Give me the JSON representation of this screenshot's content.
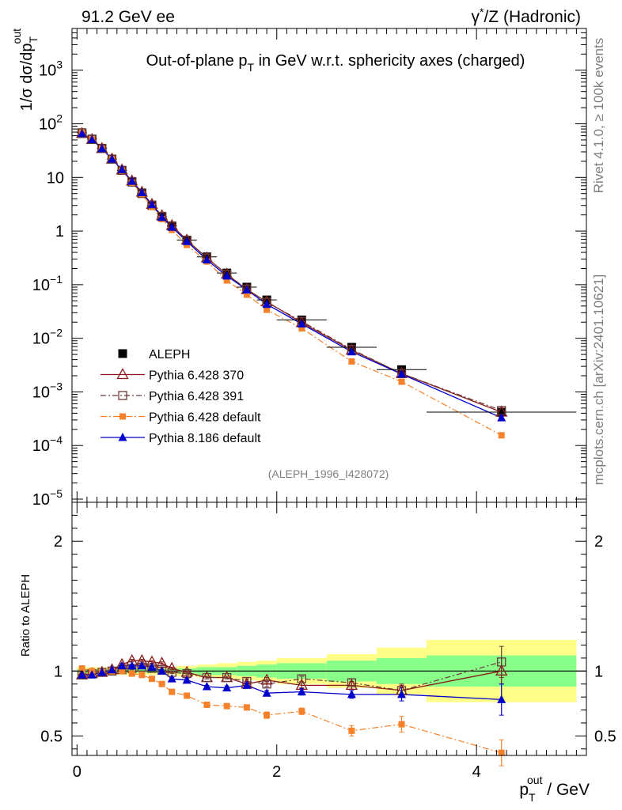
{
  "header": {
    "left": "91.2 GeV ee",
    "right_prefix": "γ",
    "right_sup": "*",
    "right_suffix": "/Z (Hadronic)"
  },
  "side": {
    "rivet": "Rivet 4.1.0, ≥ 100k events",
    "mcplots": "mcplots.cern.ch [arXiv:2401.10621]"
  },
  "colors": {
    "aleph": "#000000",
    "p370": "#8b1a1a",
    "p391": "#6b3a3a",
    "p6def": "#f5822a",
    "p8": "#0000cc",
    "band_outer": "#ffff88",
    "band_inner": "#88ff88"
  },
  "chart_data": [
    {
      "type": "scatter",
      "title": "Out-of-plane p_T in GeV w.r.t. sphericity axes (charged)",
      "title_parts": {
        "pre": "Out-of-plane p",
        "sub": "T",
        "post": " in GeV w.r.t. sphericity axes (charged)"
      },
      "ylabel_parts": {
        "pre": "1/σ  dσ/dp",
        "sub": "T",
        "sup": "out"
      },
      "yscale": "log",
      "ylim": [
        1e-05,
        6000
      ],
      "xlim": [
        -0.05,
        5.1
      ],
      "y_tick_labels": [
        {
          "value": 1e-05,
          "base": "10",
          "exp": "−5"
        },
        {
          "value": 0.0001,
          "base": "10",
          "exp": "−4"
        },
        {
          "value": 0.001,
          "base": "10",
          "exp": "−3"
        },
        {
          "value": 0.01,
          "base": "10",
          "exp": "−2"
        },
        {
          "value": 0.1,
          "base": "10",
          "exp": "−1"
        },
        {
          "value": 1,
          "base": "1",
          "exp": ""
        },
        {
          "value": 10,
          "base": "10",
          "exp": ""
        },
        {
          "value": 100,
          "base": "10",
          "exp": "2"
        },
        {
          "value": 1000,
          "base": "10",
          "exp": "3"
        }
      ],
      "watermark": "(ALEPH_1996_I428072)",
      "legend_position": "bottom-left",
      "legend": [
        {
          "key": "aleph",
          "label": "ALEPH"
        },
        {
          "key": "p370",
          "label": "Pythia 6.428 370"
        },
        {
          "key": "p391",
          "label": "Pythia 6.428 391"
        },
        {
          "key": "p6def",
          "label": "Pythia 6.428 default"
        },
        {
          "key": "p8",
          "label": "Pythia 8.186 default"
        }
      ],
      "x": [
        0.05,
        0.15,
        0.25,
        0.35,
        0.45,
        0.55,
        0.65,
        0.75,
        0.85,
        0.95,
        1.1,
        1.3,
        1.5,
        1.7,
        1.9,
        2.25,
        2.75,
        3.25,
        4.25
      ],
      "x_bins": [
        [
          0.0,
          0.1
        ],
        [
          0.1,
          0.2
        ],
        [
          0.2,
          0.3
        ],
        [
          0.3,
          0.4
        ],
        [
          0.4,
          0.5
        ],
        [
          0.5,
          0.6
        ],
        [
          0.6,
          0.7
        ],
        [
          0.7,
          0.8
        ],
        [
          0.8,
          0.9
        ],
        [
          0.9,
          1.0
        ],
        [
          1.0,
          1.2
        ],
        [
          1.2,
          1.4
        ],
        [
          1.4,
          1.6
        ],
        [
          1.6,
          1.8
        ],
        [
          1.8,
          2.0
        ],
        [
          2.0,
          2.5
        ],
        [
          2.5,
          3.0
        ],
        [
          3.0,
          3.5
        ],
        [
          3.5,
          5.0
        ]
      ],
      "series": [
        {
          "key": "aleph",
          "name": "ALEPH",
          "marker": "filled-square",
          "values": [
            68,
            52,
            35,
            22,
            13.5,
            8.2,
            5.0,
            3.0,
            1.85,
            1.25,
            0.68,
            0.33,
            0.165,
            0.09,
            0.052,
            0.022,
            0.0068,
            0.0026,
            0.00042
          ]
        },
        {
          "key": "p370",
          "name": "Pythia 6.428 370",
          "marker": "open-triangle",
          "values": [
            66,
            51,
            34.5,
            22,
            13.8,
            8.6,
            5.3,
            3.15,
            1.93,
            1.27,
            0.68,
            0.315,
            0.157,
            0.081,
            0.048,
            0.0196,
            0.006,
            0.0022,
            0.00042
          ]
        },
        {
          "key": "p391",
          "name": "Pythia 6.428 391",
          "marker": "open-square",
          "values": [
            66,
            51,
            34.5,
            22,
            13.6,
            8.4,
            5.15,
            3.05,
            1.88,
            1.24,
            0.67,
            0.315,
            0.157,
            0.083,
            0.047,
            0.0207,
            0.0062,
            0.0022,
            0.00045
          ]
        },
        {
          "key": "p6def",
          "name": "Pythia 6.428 default",
          "marker": "filled-square-small",
          "values": [
            69,
            52,
            34.5,
            22,
            13.5,
            8.0,
            4.85,
            2.8,
            1.67,
            1.05,
            0.55,
            0.27,
            0.12,
            0.065,
            0.034,
            0.0153,
            0.0037,
            0.00155,
            0.000155
          ]
        },
        {
          "key": "p8",
          "name": "Pythia 8.186 default",
          "marker": "filled-triangle",
          "values": [
            66,
            50.5,
            34.5,
            22,
            14,
            8.5,
            5.2,
            3.1,
            1.8,
            1.18,
            0.64,
            0.29,
            0.145,
            0.08,
            0.043,
            0.0185,
            0.0056,
            0.00215,
            0.00033
          ]
        }
      ]
    },
    {
      "type": "scatter",
      "ylabel": "Ratio to ALEPH",
      "xlabel_parts": {
        "pre": "p",
        "sub": "T",
        "sup": "out",
        "post": " / GeV"
      },
      "xlim": [
        -0.05,
        5.1
      ],
      "ylim": [
        0.35,
        2.3
      ],
      "x_ticks": [
        0,
        2,
        4
      ],
      "x_tick_labels": [
        "0",
        "2",
        "4"
      ],
      "y_tick_values": [
        0.5,
        1,
        2
      ],
      "y_tick_labels": [
        "0.5",
        "1",
        "2"
      ],
      "reference_line": 1,
      "band_inner_halfwidth": [
        0.015,
        0.015,
        0.015,
        0.015,
        0.015,
        0.015,
        0.015,
        0.015,
        0.015,
        0.015,
        0.02,
        0.03,
        0.03,
        0.04,
        0.05,
        0.06,
        0.08,
        0.1,
        0.12
      ],
      "band_outer_halfwidth": [
        0.03,
        0.03,
        0.03,
        0.03,
        0.03,
        0.03,
        0.03,
        0.03,
        0.03,
        0.03,
        0.04,
        0.05,
        0.06,
        0.07,
        0.08,
        0.1,
        0.13,
        0.18,
        0.24
      ],
      "ratio_series": [
        {
          "key": "p370",
          "values": [
            0.97,
            0.98,
            0.99,
            1.01,
            1.05,
            1.08,
            1.08,
            1.07,
            1.06,
            1.02,
            0.99,
            0.95,
            0.95,
            0.9,
            0.93,
            0.89,
            0.89,
            0.85,
            1.0
          ],
          "errors": [
            0.01,
            0.01,
            0.01,
            0.01,
            0.01,
            0.01,
            0.01,
            0.01,
            0.01,
            0.01,
            0.01,
            0.01,
            0.01,
            0.02,
            0.02,
            0.02,
            0.03,
            0.04,
            0.1
          ]
        },
        {
          "key": "p391",
          "values": [
            0.97,
            0.98,
            0.99,
            1.0,
            1.01,
            1.02,
            1.03,
            1.02,
            1.01,
            0.99,
            0.98,
            0.95,
            0.95,
            0.92,
            0.9,
            0.94,
            0.91,
            0.85,
            1.07
          ],
          "errors": [
            0.01,
            0.01,
            0.01,
            0.01,
            0.01,
            0.01,
            0.01,
            0.01,
            0.01,
            0.01,
            0.01,
            0.01,
            0.01,
            0.02,
            0.02,
            0.02,
            0.03,
            0.05,
            0.12
          ]
        },
        {
          "key": "p6def",
          "values": [
            1.02,
            1.0,
            0.99,
            1.0,
            1.0,
            0.98,
            0.97,
            0.94,
            0.9,
            0.84,
            0.81,
            0.74,
            0.73,
            0.72,
            0.66,
            0.69,
            0.54,
            0.59,
            0.37
          ],
          "errors": [
            0.01,
            0.01,
            0.01,
            0.01,
            0.01,
            0.01,
            0.01,
            0.01,
            0.01,
            0.01,
            0.01,
            0.01,
            0.015,
            0.02,
            0.025,
            0.025,
            0.04,
            0.06,
            0.1
          ]
        },
        {
          "key": "p8",
          "values": [
            0.97,
            0.97,
            0.99,
            1.01,
            1.04,
            1.04,
            1.04,
            1.03,
            1.0,
            0.94,
            0.93,
            0.88,
            0.87,
            0.89,
            0.83,
            0.84,
            0.82,
            0.82,
            0.78
          ],
          "errors": [
            0.01,
            0.01,
            0.01,
            0.01,
            0.01,
            0.01,
            0.01,
            0.01,
            0.01,
            0.01,
            0.01,
            0.01,
            0.015,
            0.02,
            0.02,
            0.025,
            0.03,
            0.05,
            0.12
          ]
        }
      ]
    }
  ]
}
